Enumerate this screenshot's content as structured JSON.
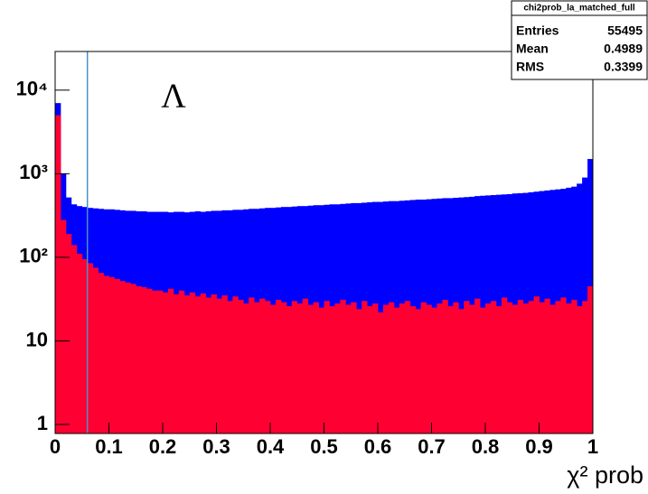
{
  "chart_data": {
    "type": "histogram",
    "x_label": "χ² prob",
    "annotation": "Λ",
    "log_y": true,
    "bins": [
      0,
      0.01,
      0.02,
      0.03,
      0.04,
      0.05,
      0.06,
      0.07,
      0.08,
      0.09,
      0.1,
      0.11,
      0.12,
      0.13,
      0.14,
      0.15,
      0.16,
      0.17,
      0.18,
      0.19,
      0.2,
      0.21,
      0.22,
      0.23,
      0.24,
      0.25,
      0.26,
      0.27,
      0.28,
      0.29,
      0.3,
      0.31,
      0.32,
      0.33,
      0.34,
      0.35,
      0.36,
      0.37,
      0.38,
      0.39,
      0.4,
      0.41,
      0.42,
      0.43,
      0.44,
      0.45,
      0.46,
      0.47,
      0.48,
      0.49,
      0.5,
      0.51,
      0.52,
      0.53,
      0.54,
      0.55,
      0.56,
      0.57,
      0.58,
      0.59,
      0.6,
      0.61,
      0.62,
      0.63,
      0.64,
      0.65,
      0.66,
      0.67,
      0.68,
      0.69,
      0.7,
      0.71,
      0.72,
      0.73,
      0.74,
      0.75,
      0.76,
      0.77,
      0.78,
      0.79,
      0.8,
      0.81,
      0.82,
      0.83,
      0.84,
      0.85,
      0.86,
      0.87,
      0.88,
      0.89,
      0.9,
      0.91,
      0.92,
      0.93,
      0.94,
      0.95,
      0.96,
      0.97,
      0.98,
      0.99,
      1
    ],
    "series": [
      {
        "color": "#0000ff",
        "values": [
          7000,
          1000,
          520,
          430,
          410,
          400,
          390,
          385,
          380,
          375,
          375,
          370,
          365,
          360,
          360,
          355,
          355,
          350,
          350,
          350,
          350,
          345,
          350,
          350,
          345,
          350,
          355,
          350,
          355,
          360,
          360,
          365,
          365,
          370,
          370,
          375,
          380,
          380,
          385,
          390,
          390,
          395,
          400,
          400,
          405,
          410,
          410,
          415,
          420,
          420,
          425,
          430,
          430,
          435,
          440,
          445,
          445,
          450,
          455,
          460,
          460,
          465,
          470,
          470,
          475,
          480,
          485,
          490,
          490,
          495,
          500,
          505,
          510,
          510,
          515,
          520,
          525,
          530,
          540,
          545,
          550,
          555,
          560,
          565,
          570,
          580,
          585,
          590,
          600,
          610,
          620,
          630,
          640,
          650,
          660,
          680,
          700,
          760,
          900,
          1500
        ]
      },
      {
        "color": "#ff0033",
        "values": [
          5000,
          280,
          190,
          140,
          110,
          95,
          85,
          75,
          65,
          60,
          58,
          55,
          52,
          50,
          48,
          45,
          44,
          42,
          40,
          40,
          38,
          42,
          36,
          40,
          35,
          38,
          34,
          37,
          33,
          36,
          32,
          35,
          30,
          34,
          31,
          28,
          33,
          29,
          32,
          30,
          27,
          31,
          29,
          26,
          30,
          28,
          32,
          27,
          29,
          25,
          30,
          26,
          28,
          31,
          27,
          29,
          24,
          30,
          26,
          28,
          22,
          27,
          29,
          25,
          28,
          30,
          26,
          24,
          29,
          27,
          25,
          28,
          31,
          26,
          29,
          24,
          30,
          27,
          32,
          25,
          28,
          30,
          26,
          33,
          29,
          27,
          31,
          28,
          30,
          34,
          29,
          32,
          27,
          30,
          33,
          28,
          31,
          26,
          30,
          45
        ]
      }
    ],
    "xlim": [
      0,
      1
    ],
    "xticks": [
      0,
      0.1,
      0.2,
      0.3,
      0.4,
      0.5,
      0.6,
      0.7,
      0.8,
      0.9,
      1
    ],
    "ylim": [
      0.78,
      29000
    ],
    "yticks": [
      1,
      10,
      {
        "value": 100,
        "label": "10²"
      },
      {
        "value": 1000,
        "label": "10³"
      },
      {
        "value": 10000,
        "label": "10⁴"
      }
    ],
    "vline": {
      "x": 0.06,
      "color": "#4a90c8"
    },
    "stats": {
      "title": "chi2prob_la_matched_full",
      "rows": [
        [
          "Entries",
          55495
        ],
        [
          "Mean",
          0.4989
        ],
        [
          "RMS",
          0.3399
        ]
      ]
    }
  }
}
